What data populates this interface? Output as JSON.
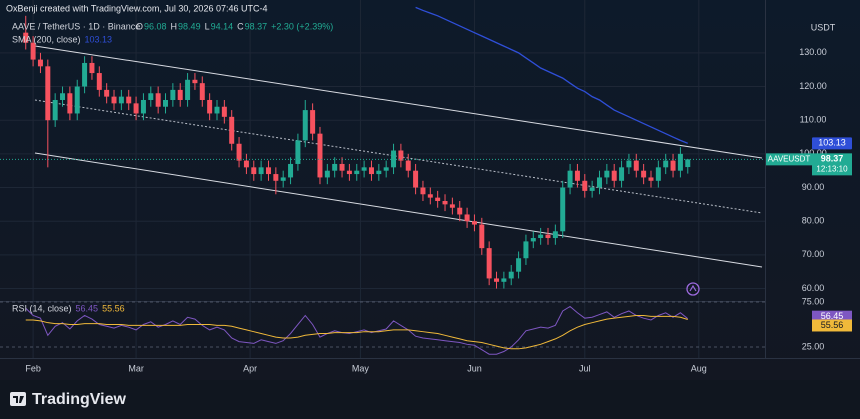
{
  "header": "OxBenji created with TradingView.com, Jul 30, 2026 07:46 UTC-4",
  "footer_logo": "TradingView",
  "chart_data": {
    "type": "candlestick",
    "title": "AAVE / TetherUS · 1D · Binance",
    "legend_values": [
      "O",
      "96.08",
      "H",
      "98.49",
      "L",
      "94.14",
      "C",
      "98.37",
      "+2.30 (+2.39%)"
    ],
    "x": [
      -2,
      0,
      2,
      4,
      6,
      8,
      10,
      12,
      14,
      16,
      18,
      20,
      22,
      24,
      26,
      28,
      30,
      32,
      34,
      36,
      38,
      40,
      42,
      44,
      46,
      48,
      50,
      52,
      54,
      56,
      58,
      60,
      62,
      64,
      66,
      68,
      70,
      72,
      74,
      76,
      78,
      80,
      82,
      84,
      86,
      88,
      90,
      92,
      94,
      96,
      98,
      100,
      102,
      104,
      106,
      108,
      110,
      112,
      114,
      116,
      118,
      120,
      122,
      124,
      126,
      128,
      130,
      132,
      134,
      136,
      138,
      140,
      142,
      144,
      146,
      148,
      150,
      152,
      154,
      156,
      158,
      160,
      162,
      164,
      166,
      168,
      170,
      172,
      174,
      176,
      178
    ],
    "open": [
      136,
      133,
      128,
      126,
      110,
      116,
      118,
      112,
      120,
      127,
      124,
      119,
      117,
      115,
      117,
      115,
      112,
      116,
      118,
      114,
      116,
      119,
      116,
      122,
      121,
      116,
      112,
      114,
      111,
      103,
      98,
      96,
      94,
      96,
      94,
      92,
      93,
      97,
      104,
      113,
      106,
      93,
      95,
      97,
      95,
      94,
      95,
      96,
      94,
      95,
      96,
      101,
      98,
      95,
      90,
      88,
      87,
      86,
      85,
      84,
      82,
      80,
      79,
      72,
      63,
      62,
      63,
      65,
      69,
      74,
      75,
      76,
      75,
      77,
      90,
      95,
      92,
      89,
      90,
      93,
      95,
      92,
      96,
      98,
      95,
      93,
      92,
      96,
      98,
      95,
      96.08
    ],
    "high": [
      141,
      135,
      130,
      128,
      118,
      120,
      120,
      122,
      129,
      129,
      126,
      121,
      119,
      119,
      119,
      117,
      118,
      120,
      120,
      118,
      121,
      121,
      124,
      124,
      123,
      118,
      116,
      116,
      113,
      105,
      100,
      98,
      98,
      98,
      96,
      95,
      99,
      106,
      116,
      115,
      108,
      97,
      99,
      99,
      97,
      97,
      98,
      98,
      97,
      98,
      103,
      103,
      100,
      97,
      92,
      90,
      89,
      88,
      87,
      86,
      84,
      82,
      81,
      74,
      65,
      65,
      67,
      71,
      76,
      77,
      78,
      78,
      79,
      92,
      97,
      97,
      94,
      92,
      95,
      97,
      97,
      98,
      100,
      100,
      97,
      95,
      98,
      100,
      100,
      102,
      98.49
    ],
    "low": [
      131,
      126,
      124,
      96,
      108,
      114,
      110,
      110,
      118,
      122,
      117,
      115,
      113,
      113,
      113,
      110,
      110,
      114,
      112,
      112,
      114,
      114,
      114,
      119,
      114,
      110,
      110,
      109,
      101,
      96,
      94,
      92,
      92,
      92,
      88,
      90,
      91,
      95,
      102,
      104,
      91,
      91,
      93,
      93,
      92,
      92,
      93,
      92,
      92,
      93,
      94,
      96,
      93,
      88,
      86,
      85,
      84,
      83,
      82,
      80,
      78,
      77,
      70,
      61,
      60,
      60,
      61,
      63,
      67,
      72,
      73,
      73,
      73,
      75,
      88,
      90,
      87,
      87,
      88,
      91,
      90,
      90,
      94,
      93,
      91,
      90,
      90,
      94,
      93,
      93,
      94.14
    ],
    "close": [
      133,
      128,
      126,
      110,
      116,
      118,
      112,
      120,
      127,
      124,
      119,
      117,
      115,
      117,
      115,
      112,
      116,
      118,
      114,
      116,
      119,
      116,
      122,
      121,
      116,
      112,
      114,
      111,
      103,
      98,
      96,
      94,
      96,
      94,
      92,
      93,
      97,
      104,
      113,
      106,
      93,
      95,
      97,
      95,
      94,
      95,
      96,
      94,
      95,
      96,
      101,
      98,
      95,
      90,
      88,
      87,
      86,
      85,
      84,
      82,
      80,
      79,
      72,
      63,
      62,
      63,
      65,
      69,
      74,
      75,
      76,
      75,
      77,
      90,
      95,
      92,
      89,
      90,
      93,
      95,
      92,
      96,
      98,
      95,
      93,
      92,
      96,
      98,
      95,
      100,
      98.37
    ],
    "up_color": "#22ab94",
    "down_color": "#f7525f",
    "xlim": [
      -9,
      199
    ],
    "xticks": [
      {
        "value": 0,
        "label": "Feb"
      },
      {
        "value": 28,
        "label": "Mar"
      },
      {
        "value": 59,
        "label": "Apr"
      },
      {
        "value": 89,
        "label": "May"
      },
      {
        "value": 120,
        "label": "Jun"
      },
      {
        "value": 150,
        "label": "Jul"
      },
      {
        "value": 181,
        "label": "Aug"
      }
    ],
    "ylim": [
      56,
      145.7
    ],
    "yticks": [
      {
        "value": 60,
        "label": "60.00"
      },
      {
        "value": 70,
        "label": "70.00"
      },
      {
        "value": 80,
        "label": "80.00"
      },
      {
        "value": 90,
        "label": "90.00"
      },
      {
        "value": 100,
        "label": "100.00"
      },
      {
        "value": 110,
        "label": "110.00"
      },
      {
        "value": 120,
        "label": "120.00"
      },
      {
        "value": 130,
        "label": "130.00"
      }
    ],
    "y_unit": "USDT",
    "grid": true,
    "symbol_tag": "AAVEUSDT",
    "last_price_label": "98.37",
    "countdown": "12:13:10",
    "overlays": [
      {
        "name": "SMA (200, close)",
        "color": "#2f4fd8",
        "value_label": "103.13",
        "values": [
          null,
          null,
          null,
          null,
          null,
          null,
          null,
          null,
          null,
          null,
          null,
          null,
          null,
          null,
          null,
          null,
          null,
          null,
          null,
          null,
          null,
          null,
          null,
          null,
          null,
          null,
          null,
          null,
          null,
          null,
          null,
          null,
          null,
          null,
          null,
          null,
          null,
          null,
          null,
          null,
          null,
          null,
          null,
          null,
          null,
          null,
          null,
          null,
          null,
          null,
          null,
          null,
          null,
          143.5,
          142.6,
          141.8,
          141,
          140,
          139,
          138,
          137,
          136,
          135,
          134,
          133,
          132,
          131,
          130,
          128.5,
          127,
          125.5,
          124.5,
          123.5,
          122.5,
          121,
          119.5,
          118.5,
          117,
          116,
          114.5,
          113,
          112,
          111,
          110,
          109,
          108,
          107,
          106,
          105,
          104,
          103.13
        ]
      }
    ],
    "rsi": {
      "title": "RSI (14, close)",
      "ylim": [
        12.8,
        79.4
      ],
      "yticks": [
        {
          "value": 75,
          "label": "75.00"
        },
        {
          "value": 25,
          "label": "25.00"
        }
      ],
      "series": [
        {
          "color": "#7e57c2",
          "value_label": "56.45",
          "values": [
            68,
            60,
            57,
            38,
            48,
            52,
            45,
            54,
            60,
            56,
            50,
            48,
            46,
            49,
            47,
            44,
            50,
            53,
            47,
            50,
            54,
            50,
            58,
            56,
            49,
            44,
            47,
            44,
            35,
            31,
            30,
            29,
            33,
            31,
            29,
            32,
            40,
            50,
            60,
            50,
            36,
            40,
            43,
            41,
            40,
            42,
            44,
            41,
            43,
            45,
            54,
            49,
            44,
            37,
            35,
            34,
            33,
            32,
            31,
            30,
            28,
            27,
            22,
            17,
            17,
            20,
            25,
            33,
            43,
            45,
            47,
            46,
            49,
            65,
            70,
            63,
            57,
            58,
            61,
            64,
            58,
            62,
            65,
            60,
            57,
            55,
            60,
            63,
            58,
            63,
            56.45
          ]
        },
        {
          "color": "#f0b93a",
          "value_label": "55.56",
          "values": [
            55,
            55,
            54,
            52,
            51,
            51,
            50,
            50,
            51,
            51,
            51,
            50,
            50,
            50,
            49,
            49,
            49,
            49,
            49,
            49,
            49,
            49,
            50,
            50,
            50,
            50,
            49,
            49,
            48,
            46,
            44,
            42,
            40,
            38,
            36,
            35,
            35,
            36,
            38,
            39,
            40,
            40,
            41,
            41,
            41,
            41,
            42,
            42,
            42,
            43,
            44,
            44,
            44,
            43,
            42,
            41,
            40,
            38,
            36,
            34,
            32,
            31,
            30,
            28,
            26,
            24,
            23,
            23,
            24,
            26,
            28,
            31,
            34,
            38,
            43,
            47,
            50,
            52,
            54,
            56,
            57,
            58,
            59,
            60,
            60,
            59,
            59,
            59,
            59,
            58,
            55.56
          ]
        }
      ]
    }
  }
}
